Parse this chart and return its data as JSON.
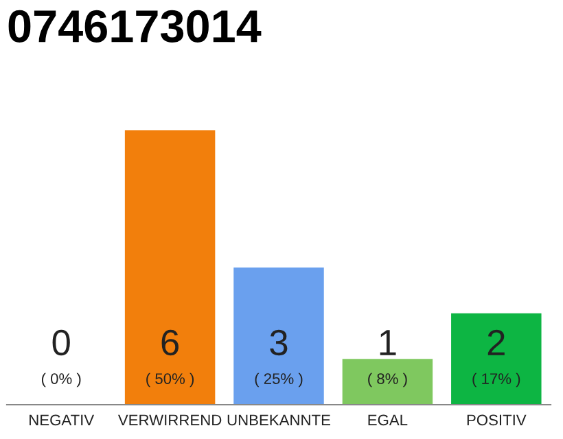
{
  "chart_data": {
    "type": "bar",
    "title": "0746173014",
    "categories": [
      "NEGATIV",
      "VERWIRREND",
      "UNBEKANNTE",
      "EGAL",
      "POSITIV"
    ],
    "values": [
      0,
      6,
      3,
      1,
      2
    ],
    "colors": [
      "#cccccc",
      "#f27f0c",
      "#6aa0ee",
      "#7fc85f",
      "#0db543"
    ],
    "value_labels": [
      "0\n( 0% )",
      "6\n( 50% )",
      "3\n( 25% )",
      "1\n( 8% )",
      "2\n( 17% )"
    ],
    "relative": false,
    "grid": false,
    "legend": false
  }
}
